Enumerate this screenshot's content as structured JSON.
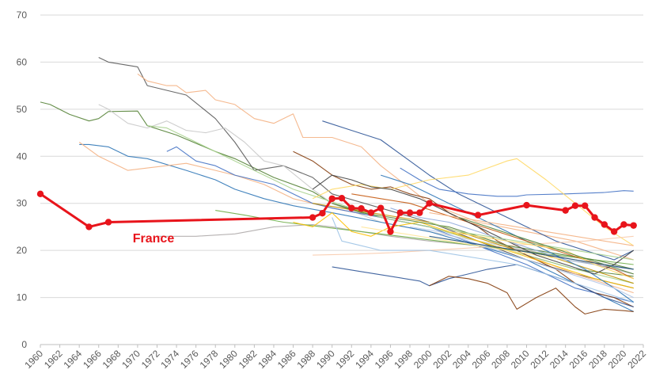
{
  "chart_data": {
    "type": "line",
    "title": "",
    "xlabel": "",
    "ylabel": "",
    "xlim": [
      1960,
      2022
    ],
    "ylim": [
      0,
      70
    ],
    "y_ticks": [
      0,
      10,
      20,
      30,
      40,
      50,
      60,
      70
    ],
    "x_ticks": [
      1960,
      1962,
      1964,
      1966,
      1968,
      1970,
      1972,
      1974,
      1976,
      1978,
      1980,
      1982,
      1984,
      1986,
      1988,
      1990,
      1992,
      1994,
      1996,
      1998,
      2000,
      2002,
      2004,
      2006,
      2008,
      2010,
      2012,
      2014,
      2016,
      2018,
      2020,
      2022
    ],
    "gridlines": "horizontal",
    "annotations": [
      {
        "text": "France",
        "x": 1969.5,
        "y": 21.7
      }
    ],
    "highlight_series": {
      "name": "France",
      "color": "#e8141b",
      "x": [
        1960,
        1965,
        1967,
        1988,
        1989,
        1990,
        1991,
        1992,
        1993,
        1994,
        1995,
        1996,
        1997,
        1998,
        1999,
        2000,
        2005,
        2010,
        2014,
        2015,
        2016,
        2017,
        2018,
        2019,
        2020,
        2021
      ],
      "y": [
        32,
        25,
        26,
        27,
        27.9,
        31,
        31.1,
        29,
        28.9,
        28,
        29,
        24,
        28,
        28,
        28,
        30,
        27.5,
        29.6,
        28.5,
        29.5,
        29.5,
        27,
        25.5,
        24,
        25.5,
        25.3
      ]
    },
    "series": [
      {
        "color": "#548235",
        "x": [
          1960,
          1961,
          1963,
          1965,
          1966,
          1967,
          1970,
          1971,
          1974,
          1978,
          1980,
          1984,
          1988,
          1990,
          1995,
          2000,
          2005,
          2010,
          2015,
          2021
        ],
        "y": [
          51.5,
          51,
          48.9,
          47.5,
          48,
          49.5,
          49.6,
          46.5,
          44.5,
          41,
          39.5,
          35.5,
          32.5,
          30,
          27,
          25,
          22,
          19,
          16,
          14.5
        ]
      },
      {
        "color": "#595959",
        "x": [
          1966,
          1967,
          1970,
          1971,
          1975,
          1978,
          1980,
          1982,
          1985,
          1988,
          1990,
          1995,
          2000,
          2005,
          2010,
          2015,
          2021
        ],
        "y": [
          61,
          60,
          59,
          55,
          53,
          48,
          43,
          37,
          38,
          35.5,
          32,
          29,
          26,
          22,
          18,
          15,
          12
        ]
      },
      {
        "color": "#f4b183",
        "x": [
          1970,
          1971,
          1973,
          1974,
          1975,
          1977,
          1978,
          1980,
          1982,
          1984,
          1986,
          1987,
          1990,
          1993,
          1995,
          2000,
          2005,
          2010,
          2015,
          2021
        ],
        "y": [
          57.5,
          56,
          55,
          55,
          53.5,
          54,
          52,
          51,
          48,
          47,
          49,
          44,
          44,
          42,
          38,
          30,
          26,
          24,
          22,
          18
        ]
      },
      {
        "color": "#c9c9c9",
        "x": [
          1966,
          1967,
          1969,
          1971,
          1973,
          1975,
          1977,
          1979,
          1981,
          1983,
          1985,
          1988,
          1990,
          1995,
          2000,
          2005,
          2010,
          2015,
          2021
        ],
        "y": [
          51,
          50,
          47,
          46,
          47.5,
          45.5,
          45,
          46,
          43,
          39,
          38,
          33,
          30,
          26,
          24,
          22,
          20,
          18,
          16
        ]
      },
      {
        "color": "#2e75b6",
        "x": [
          1964,
          1965,
          1967,
          1969,
          1971,
          1975,
          1978,
          1980,
          1983,
          1986,
          1990,
          1995,
          2000,
          2005,
          2010,
          2015,
          2021
        ],
        "y": [
          42.5,
          42.5,
          42,
          40,
          39.5,
          37,
          35,
          33,
          31,
          29.5,
          28,
          26,
          24,
          21,
          18,
          13,
          7
        ]
      },
      {
        "color": "#f4b183",
        "x": [
          1964,
          1966,
          1969,
          1971,
          1975,
          1978,
          1980,
          1983,
          1986,
          1988,
          1990,
          1995,
          2000,
          2005,
          2010,
          2015,
          2021
        ],
        "y": [
          43,
          40,
          37,
          37.5,
          38.5,
          37,
          36,
          34,
          31,
          30,
          29,
          27,
          25,
          22,
          19,
          15,
          11
        ]
      },
      {
        "color": "#4472c4",
        "x": [
          1973,
          1974,
          1976,
          1978,
          1980,
          1982,
          1984,
          1986,
          1988,
          1990,
          1995,
          2000,
          2005,
          2010,
          2015,
          2021
        ],
        "y": [
          41,
          42,
          39,
          38,
          36,
          35,
          34,
          32,
          30,
          29,
          27,
          25,
          21,
          17,
          12,
          9
        ]
      },
      {
        "color": "#a9d18e",
        "x": [
          1971,
          1973,
          1975,
          1977,
          1980,
          1983,
          1986,
          1989,
          1992,
          1995,
          2000,
          2005,
          2010,
          2015,
          2021
        ],
        "y": [
          46.5,
          46,
          44,
          42,
          39,
          36,
          33,
          31,
          29,
          27,
          25,
          22,
          19,
          16,
          13
        ]
      },
      {
        "color": "#843c0c",
        "x": [
          1986,
          1988,
          1990,
          1992,
          1994,
          1996,
          1998,
          2000,
          2002,
          2005,
          2007,
          2009,
          2011,
          2013,
          2015,
          2017,
          2019,
          2021
        ],
        "y": [
          41,
          39,
          36,
          34,
          33,
          33.5,
          32,
          31,
          28,
          25,
          22,
          20,
          18,
          16,
          13,
          11,
          10,
          8
        ]
      },
      {
        "color": "#2f5597",
        "x": [
          1989,
          1992,
          1995,
          1998,
          2000,
          2003,
          2005,
          2008,
          2010,
          2013,
          2016,
          2019,
          2021
        ],
        "y": [
          47.5,
          45.5,
          43.5,
          39,
          36,
          32,
          30,
          27,
          25,
          22,
          20,
          18,
          20
        ]
      },
      {
        "color": "#4472c4",
        "x": [
          1997,
          1999,
          2001,
          2004,
          2007,
          2009,
          2010,
          2014,
          2018,
          2020,
          2021
        ],
        "y": [
          37.5,
          35,
          33,
          32,
          31.5,
          31.5,
          31.8,
          32,
          32.3,
          32.7,
          32.6
        ]
      },
      {
        "color": "#ffd966",
        "x": [
          1988,
          1990,
          1993,
          1996,
          2000,
          2004,
          2006,
          2008,
          2009,
          2012,
          2015,
          2018,
          2021
        ],
        "y": [
          31,
          33,
          34,
          33,
          35,
          36,
          37.5,
          39,
          39.5,
          35,
          30,
          25,
          21
        ]
      },
      {
        "color": "#aeaaaa",
        "x": [
          1972,
          1976,
          1980,
          1984,
          1988,
          1990,
          1993,
          1996,
          2000,
          2005,
          2010,
          2015,
          2021
        ],
        "y": [
          23,
          23,
          23.5,
          25,
          25.5,
          25,
          24,
          23,
          22,
          21,
          20,
          18,
          15
        ]
      },
      {
        "color": "#f8cbad",
        "x": [
          1988,
          1992,
          1996,
          2000,
          2004,
          2008,
          2012,
          2016,
          2021
        ],
        "y": [
          19,
          19.2,
          19.5,
          20,
          20.5,
          21,
          21.5,
          22,
          23
        ]
      },
      {
        "color": "#2f5597",
        "x": [
          1990,
          1993,
          1996,
          1999,
          2000,
          2002,
          2004,
          2006,
          2009,
          2012,
          2015,
          2018,
          2021
        ],
        "y": [
          16.5,
          15.5,
          14.5,
          13.5,
          12.5,
          14,
          15,
          16,
          17,
          15,
          13,
          10,
          8
        ]
      },
      {
        "color": "#843c0c",
        "x": [
          2000,
          2002,
          2004,
          2006,
          2008,
          2009,
          2011,
          2013,
          2015,
          2016,
          2018,
          2020,
          2021
        ],
        "y": [
          12.5,
          14.5,
          14,
          13,
          11,
          7.5,
          10,
          12,
          8,
          6.5,
          7.5,
          7.2,
          7
        ]
      },
      {
        "color": "#70ad47",
        "x": [
          1978,
          1981,
          1985,
          1989,
          1993,
          1997,
          2001,
          2005,
          2009,
          2013,
          2017,
          2021
        ],
        "y": [
          28.5,
          27.5,
          26,
          25,
          24,
          23,
          22,
          21,
          20,
          19,
          18,
          17
        ]
      },
      {
        "color": "#9dc3e6",
        "x": [
          1990,
          1991,
          1993,
          1995,
          1997,
          2000,
          2003,
          2006,
          2009,
          2012,
          2015,
          2018,
          2021
        ],
        "y": [
          27,
          22,
          21,
          20,
          20,
          20,
          19,
          18,
          17,
          15,
          13,
          11,
          9
        ]
      },
      {
        "color": "#ffc000",
        "x": [
          1986,
          1988,
          1990,
          1992,
          1994,
          1996,
          1999,
          2002,
          2005,
          2008,
          2011,
          2014,
          2017,
          2021
        ],
        "y": [
          26,
          25,
          28,
          24,
          23,
          25,
          26,
          24,
          22,
          20,
          18,
          16,
          14,
          12
        ]
      },
      {
        "color": "#bf9000",
        "x": [
          1988,
          1991,
          1994,
          1997,
          2000,
          2003,
          2006,
          2009,
          2012,
          2015,
          2018,
          2021
        ],
        "y": [
          30,
          29,
          28,
          27,
          26,
          24,
          22,
          20,
          19,
          17,
          15,
          13
        ]
      },
      {
        "color": "#538135",
        "x": [
          1990,
          1993,
          1996,
          1999,
          2002,
          2005,
          2008,
          2011,
          2014,
          2017,
          2021
        ],
        "y": [
          30,
          28,
          27,
          26,
          25,
          23,
          21,
          20,
          19,
          18,
          16
        ]
      },
      {
        "color": "#2e75b6",
        "x": [
          1995,
          1998,
          2001,
          2004,
          2007,
          2010,
          2013,
          2016,
          2019,
          2021
        ],
        "y": [
          36,
          34,
          31,
          28,
          25,
          22,
          19,
          16,
          12,
          9
        ]
      },
      {
        "color": "#c55a11",
        "x": [
          1992,
          1995,
          1998,
          2001,
          2004,
          2007,
          2010,
          2013,
          2016,
          2019,
          2021
        ],
        "y": [
          32,
          31,
          30,
          28,
          26,
          24,
          22,
          20,
          18,
          16,
          14
        ]
      },
      {
        "color": "#ffe699",
        "x": [
          1993,
          1996,
          1999,
          2002,
          2005,
          2008,
          2011,
          2014,
          2017,
          2021
        ],
        "y": [
          25,
          24,
          23,
          22,
          21,
          20,
          19,
          18,
          17,
          16
        ]
      },
      {
        "color": "#404040",
        "x": [
          1988,
          1990,
          1992,
          1994,
          1996,
          1999,
          2002,
          2005,
          2008,
          2011,
          2014,
          2017,
          2019,
          2021
        ],
        "y": [
          33,
          36,
          35,
          33.5,
          33,
          31,
          28,
          25,
          22,
          19,
          17,
          15,
          17,
          20
        ]
      },
      {
        "color": "#8faadc",
        "x": [
          1996,
          1999,
          2002,
          2005,
          2008,
          2011,
          2014,
          2017,
          2021
        ],
        "y": [
          29,
          27,
          26,
          24,
          22,
          20,
          18,
          17,
          16
        ]
      },
      {
        "color": "#a9d18e",
        "x": [
          2000,
          2003,
          2006,
          2009,
          2012,
          2015,
          2018,
          2021
        ],
        "y": [
          26,
          24,
          23,
          22,
          21,
          20,
          19,
          18
        ]
      },
      {
        "color": "#b4c7e7",
        "x": [
          1998,
          2001,
          2004,
          2007,
          2010,
          2013,
          2016,
          2019,
          2021
        ],
        "y": [
          25,
          24,
          22,
          20,
          18,
          16,
          14,
          12,
          10
        ]
      },
      {
        "color": "#f4b183",
        "x": [
          2000,
          2003,
          2006,
          2009,
          2012,
          2015,
          2018,
          2021
        ],
        "y": [
          28,
          27,
          26,
          25,
          24,
          23,
          22,
          21
        ]
      },
      {
        "color": "#ffd966",
        "x": [
          2002,
          2005,
          2008,
          2011,
          2014,
          2017,
          2021
        ],
        "y": [
          24,
          23,
          22,
          21,
          20,
          17,
          14
        ]
      },
      {
        "color": "#548235",
        "x": [
          2003,
          2006,
          2009,
          2012,
          2015,
          2018,
          2021
        ],
        "y": [
          27,
          25,
          23,
          21,
          19,
          17,
          15
        ]
      },
      {
        "color": "#1f4e79",
        "x": [
          2000,
          2003,
          2006,
          2009,
          2012,
          2015,
          2018,
          2021
        ],
        "y": [
          23,
          22,
          21,
          20,
          19,
          18,
          17,
          16
        ]
      }
    ]
  }
}
